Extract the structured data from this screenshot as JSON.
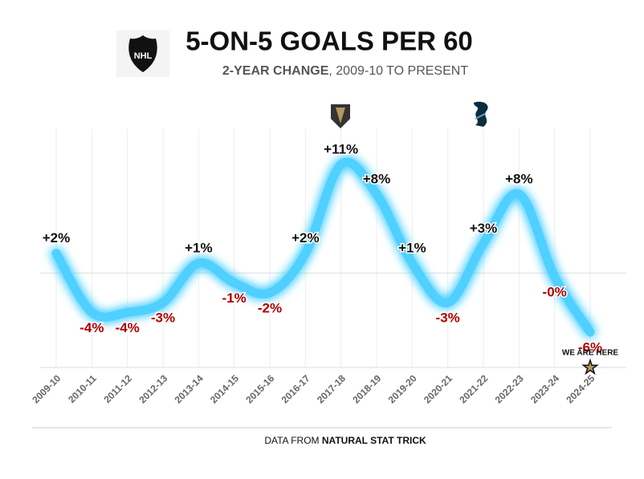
{
  "chart_data": {
    "type": "line",
    "title": "5-ON-5 GOALS PER 60",
    "subtitle": {
      "bold": "2-YEAR CHANGE",
      "rest": ", 2009-10 TO PRESENT"
    },
    "categories": [
      "2009-10",
      "2010-11",
      "2011-12",
      "2012-13",
      "2013-14",
      "2014-15",
      "2015-16",
      "2016-17",
      "2017-18",
      "2018-19",
      "2019-20",
      "2020-21",
      "2021-22",
      "2022-23",
      "2023-24",
      "2024-25"
    ],
    "values": [
      2,
      -4,
      -4,
      -3,
      1,
      -1,
      -2,
      2,
      11,
      8,
      1,
      -3,
      3,
      8,
      -0.4,
      -6
    ],
    "value_labels": [
      "+2%",
      "-4%",
      "-4%",
      "-3%",
      "+1%",
      "-1%",
      "-2%",
      "+2%",
      "+11%",
      "+8%",
      "+1%",
      "-3%",
      "+3%",
      "+8%",
      "-0%",
      "-6%"
    ],
    "color": "#4fd0ff",
    "positive_color": "#111111",
    "negative_color": "#b00000",
    "annotation": "WE ARE HERE",
    "source": {
      "prefix": "DATA FROM ",
      "name": "NATURAL STAT TRICK"
    }
  }
}
